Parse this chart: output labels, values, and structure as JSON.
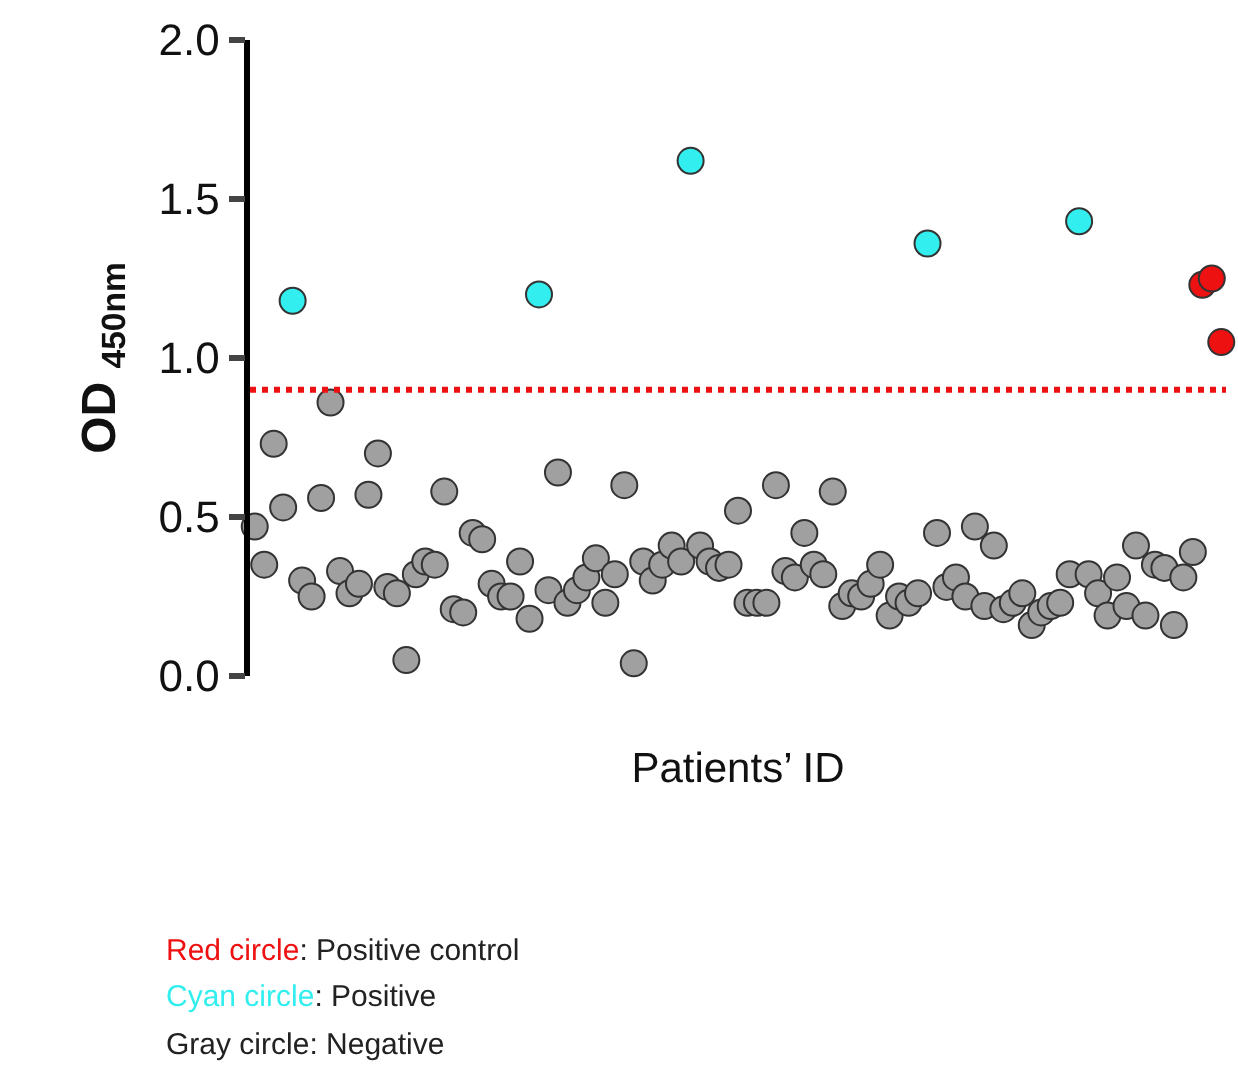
{
  "chart_data": {
    "type": "scatter",
    "xlabel": "Patients’ ID",
    "ylabel": "OD $_{450nm}$",
    "categories": [
      null,
      null,
      null,
      null,
      null,
      null,
      null,
      null,
      null,
      null,
      null,
      null,
      null,
      null,
      null,
      null,
      null,
      null,
      null,
      null,
      null,
      null,
      null,
      null,
      null,
      null,
      null,
      null,
      null,
      null,
      null,
      null,
      null,
      null,
      null,
      null,
      null,
      null,
      null,
      null,
      null,
      null,
      null,
      null,
      null,
      null,
      null,
      null,
      null,
      null,
      null,
      null,
      null,
      null,
      null,
      null,
      null,
      null,
      null,
      null,
      null,
      null,
      null,
      null,
      null,
      null,
      null,
      null,
      null,
      null,
      null,
      null,
      null,
      null,
      null,
      null,
      null,
      null,
      null,
      null,
      null,
      null,
      null,
      null,
      null,
      null,
      null,
      null,
      null,
      null,
      null,
      null,
      null,
      null,
      null,
      null,
      null,
      null,
      null,
      null,
      null,
      null,
      null
    ],
    "series": [
      {
        "color": "#ee1111",
        "values": [
          null,
          null,
          null,
          null,
          null,
          null,
          null,
          null,
          null,
          null,
          null,
          null,
          null,
          null,
          null,
          null,
          null,
          null,
          null,
          null,
          null,
          null,
          null,
          null,
          null,
          null,
          null,
          null,
          null,
          null,
          null,
          null,
          null,
          null,
          null,
          null,
          null,
          null,
          null,
          null,
          null,
          null,
          null,
          null,
          null,
          null,
          null,
          null,
          null,
          null,
          null,
          null,
          null,
          null,
          null,
          null,
          null,
          null,
          null,
          null,
          null,
          null,
          null,
          null,
          null,
          null,
          null,
          null,
          null,
          null,
          null,
          null,
          null,
          null,
          null,
          null,
          null,
          null,
          null,
          null,
          null,
          null,
          null,
          null,
          null,
          null,
          null,
          null,
          null,
          null,
          null,
          null,
          null,
          null,
          null,
          null,
          null,
          null,
          null,
          null,
          1.23,
          1.25,
          1.05
        ]
      },
      {
        "color": "#33eeee",
        "values": [
          null,
          null,
          null,
          null,
          1.18,
          null,
          null,
          null,
          null,
          null,
          null,
          null,
          null,
          null,
          null,
          null,
          null,
          null,
          null,
          null,
          null,
          null,
          null,
          null,
          null,
          null,
          null,
          null,
          null,
          null,
          1.2,
          null,
          null,
          null,
          null,
          null,
          null,
          null,
          null,
          null,
          null,
          null,
          null,
          null,
          null,
          null,
          1.62,
          null,
          null,
          null,
          null,
          null,
          null,
          null,
          null,
          null,
          null,
          null,
          null,
          null,
          null,
          null,
          null,
          null,
          null,
          null,
          null,
          null,
          null,
          null,
          null,
          1.36,
          null,
          null,
          null,
          null,
          null,
          null,
          null,
          null,
          null,
          null,
          null,
          null,
          null,
          null,
          null,
          1.43,
          null,
          null,
          null,
          null,
          null,
          null,
          null,
          null,
          null,
          null,
          null,
          null,
          null,
          null,
          null
        ]
      },
      {
        "color": "#a0a0a0",
        "values": [
          0.47,
          0.35,
          0.73,
          0.53,
          null,
          0.3,
          0.25,
          0.56,
          0.86,
          0.33,
          0.26,
          0.29,
          0.57,
          0.7,
          0.28,
          0.26,
          0.05,
          0.32,
          0.36,
          0.35,
          0.58,
          0.21,
          0.2,
          0.45,
          0.43,
          0.29,
          0.25,
          0.25,
          0.36,
          0.18,
          null,
          0.27,
          0.64,
          0.23,
          0.27,
          0.31,
          0.37,
          0.23,
          0.32,
          0.6,
          0.04,
          0.36,
          0.3,
          0.35,
          0.41,
          0.36,
          null,
          0.41,
          0.36,
          0.34,
          0.35,
          0.52,
          0.23,
          0.23,
          0.23,
          0.6,
          0.33,
          0.31,
          0.45,
          0.35,
          0.32,
          0.58,
          0.22,
          0.26,
          0.25,
          0.29,
          0.35,
          0.19,
          0.25,
          0.23,
          0.26,
          null,
          0.45,
          0.28,
          0.31,
          0.25,
          0.47,
          0.22,
          0.41,
          0.21,
          0.23,
          0.26,
          0.16,
          0.2,
          0.22,
          0.23,
          0.32,
          null,
          0.32,
          0.26,
          0.19,
          0.31,
          0.22,
          0.41,
          0.19,
          0.35,
          0.34,
          0.16,
          0.31,
          0.39,
          null,
          null,
          null
        ]
      }
    ],
    "ylim": [
      0,
      2
    ],
    "yticks": [
      {
        "value": 0,
        "label": "0.0"
      },
      {
        "value": 0.5,
        "label": "0.5"
      },
      {
        "value": 1,
        "label": "1.0"
      },
      {
        "value": 1.5,
        "label": "1.5"
      },
      {
        "value": 2,
        "label": "2.0"
      }
    ],
    "ref_lines": [
      {
        "axis": "y",
        "value": 0.9,
        "color": "#ee1111",
        "line_style": "dotted"
      }
    ],
    "marker": "circle",
    "tick_labels": "y",
    "annotations": [
      "Red circle: Positive control",
      "Cyan circle: Positive",
      "Gray circle: Negative"
    ]
  }
}
